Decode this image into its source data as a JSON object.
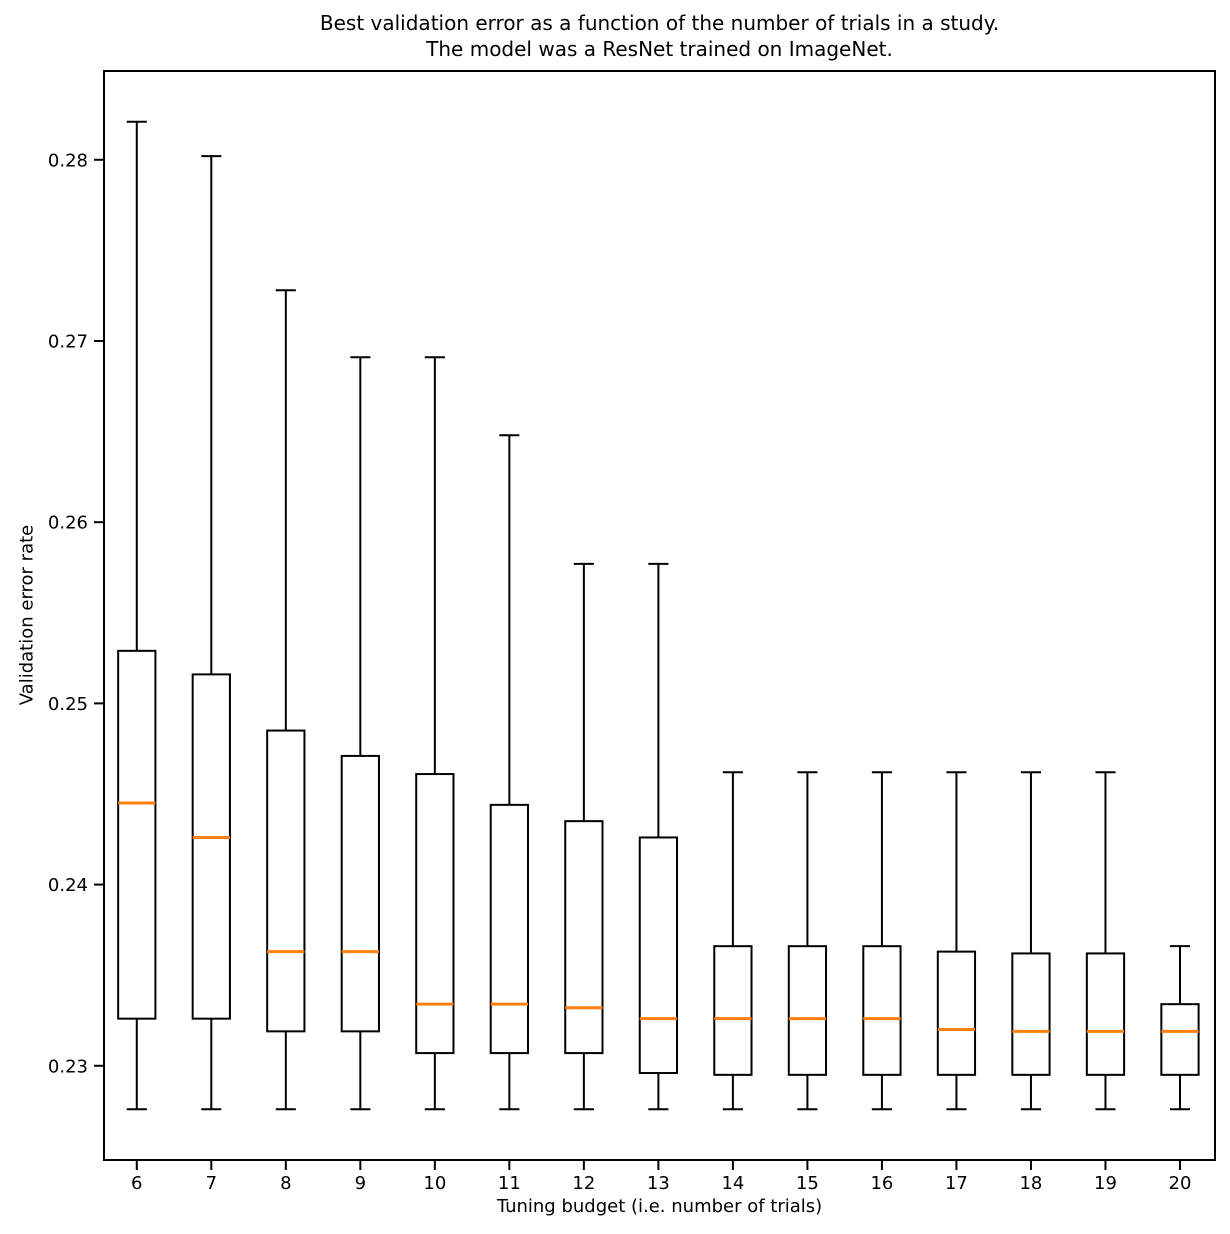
{
  "chart_data": {
    "type": "boxplot",
    "title_lines": [
      "Best validation error as a function of the number of trials in a study.",
      "The model was a ResNet trained on ImageNet."
    ],
    "xlabel": "Tuning budget (i.e. number of trials)",
    "ylabel": "Validation error rate",
    "xlim": [
      5.56,
      20.47
    ],
    "ylim": [
      0.2248,
      0.2849
    ],
    "y_ticks": [
      {
        "value": 0.23,
        "label": "0.23"
      },
      {
        "value": 0.24,
        "label": "0.24"
      },
      {
        "value": 0.25,
        "label": "0.25"
      },
      {
        "value": 0.26,
        "label": "0.26"
      },
      {
        "value": 0.27,
        "label": "0.27"
      },
      {
        "value": 0.28,
        "label": "0.28"
      }
    ],
    "grid": false,
    "legend": false,
    "box_width": 0.5,
    "cap_width": 0.27,
    "box_color": "#000000",
    "median_color": "#ff7f0e",
    "background_color": "#ffffff",
    "boxes": [
      {
        "label": "6",
        "x": 6,
        "whislo": 0.2276,
        "q1": 0.2326,
        "med": 0.2445,
        "q3": 0.2529,
        "whishi": 0.2821
      },
      {
        "label": "7",
        "x": 7,
        "whislo": 0.2276,
        "q1": 0.2326,
        "med": 0.2426,
        "q3": 0.2516,
        "whishi": 0.2802
      },
      {
        "label": "8",
        "x": 8,
        "whislo": 0.2276,
        "q1": 0.2319,
        "med": 0.2363,
        "q3": 0.2485,
        "whishi": 0.2728
      },
      {
        "label": "9",
        "x": 9,
        "whislo": 0.2276,
        "q1": 0.2319,
        "med": 0.2363,
        "q3": 0.2471,
        "whishi": 0.2691
      },
      {
        "label": "10",
        "x": 10,
        "whislo": 0.2276,
        "q1": 0.2307,
        "med": 0.2334,
        "q3": 0.2461,
        "whishi": 0.2691
      },
      {
        "label": "11",
        "x": 11,
        "whislo": 0.2276,
        "q1": 0.2307,
        "med": 0.2334,
        "q3": 0.2444,
        "whishi": 0.2648
      },
      {
        "label": "12",
        "x": 12,
        "whislo": 0.2276,
        "q1": 0.2307,
        "med": 0.2332,
        "q3": 0.2435,
        "whishi": 0.2577
      },
      {
        "label": "13",
        "x": 13,
        "whislo": 0.2276,
        "q1": 0.2296,
        "med": 0.2326,
        "q3": 0.2426,
        "whishi": 0.2577
      },
      {
        "label": "14",
        "x": 14,
        "whislo": 0.2276,
        "q1": 0.2295,
        "med": 0.2326,
        "q3": 0.2366,
        "whishi": 0.2462
      },
      {
        "label": "15",
        "x": 15,
        "whislo": 0.2276,
        "q1": 0.2295,
        "med": 0.2326,
        "q3": 0.2366,
        "whishi": 0.2462
      },
      {
        "label": "16",
        "x": 16,
        "whislo": 0.2276,
        "q1": 0.2295,
        "med": 0.2326,
        "q3": 0.2366,
        "whishi": 0.2462
      },
      {
        "label": "17",
        "x": 17,
        "whislo": 0.2276,
        "q1": 0.2295,
        "med": 0.232,
        "q3": 0.2363,
        "whishi": 0.2462
      },
      {
        "label": "18",
        "x": 18,
        "whislo": 0.2276,
        "q1": 0.2295,
        "med": 0.2319,
        "q3": 0.2362,
        "whishi": 0.2462
      },
      {
        "label": "19",
        "x": 19,
        "whislo": 0.2276,
        "q1": 0.2295,
        "med": 0.2319,
        "q3": 0.2362,
        "whishi": 0.2462
      },
      {
        "label": "20",
        "x": 20,
        "whislo": 0.2276,
        "q1": 0.2295,
        "med": 0.2319,
        "q3": 0.2334,
        "whishi": 0.2366
      }
    ]
  }
}
